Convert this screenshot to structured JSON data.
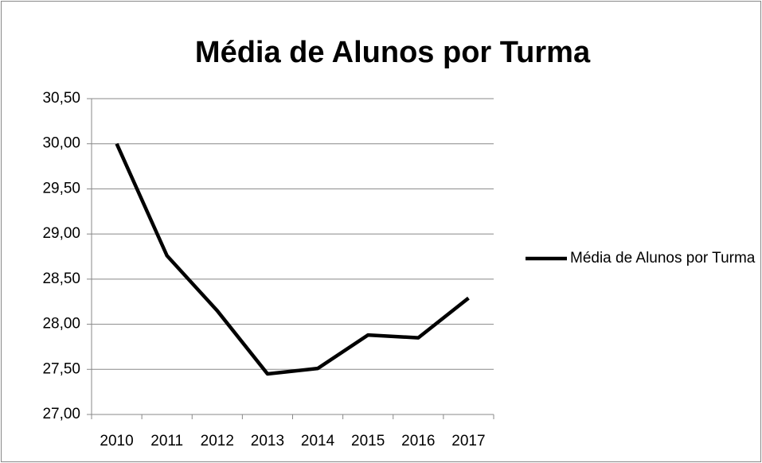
{
  "chart_data": {
    "type": "line",
    "title": "Média de Alunos por Turma",
    "categories": [
      "2010",
      "2011",
      "2012",
      "2013",
      "2014",
      "2015",
      "2016",
      "2017"
    ],
    "series": [
      {
        "name": "Média de Alunos por Turma",
        "color": "#000000",
        "values": [
          30.0,
          28.76,
          28.15,
          27.45,
          27.51,
          27.88,
          27.85,
          28.29
        ]
      }
    ],
    "ylim": [
      27,
      30.5
    ],
    "yticks": [
      {
        "value": 27,
        "label": "27,00"
      },
      {
        "value": 27.5,
        "label": "27,50"
      },
      {
        "value": 28,
        "label": "28,00"
      },
      {
        "value": 28.5,
        "label": "28,50"
      },
      {
        "value": 29,
        "label": "29,00"
      },
      {
        "value": 29.5,
        "label": "29,50"
      },
      {
        "value": 30,
        "label": "30,00"
      },
      {
        "value": 30.5,
        "label": "30,50"
      }
    ],
    "grid": true,
    "legend": "right"
  }
}
